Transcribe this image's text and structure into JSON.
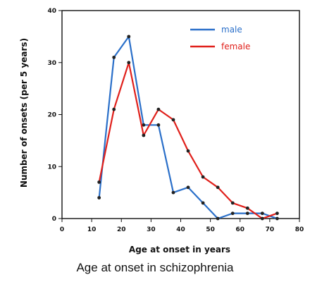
{
  "chart_data": {
    "type": "line",
    "title": "",
    "caption": "Age at onset in schizophrenia",
    "xlabel": "Age at onset in years",
    "ylabel": "Number of onsets (per 5 years)",
    "xlim": [
      0,
      80
    ],
    "ylim": [
      0,
      40
    ],
    "xticks": [
      0,
      10,
      20,
      30,
      40,
      50,
      60,
      70,
      80
    ],
    "yticks": [
      0,
      10,
      20,
      30,
      40
    ],
    "grid": false,
    "legend_position": "top-right",
    "series": [
      {
        "name": "male",
        "color": "#2a6fc9",
        "x": [
          12.5,
          17.5,
          22.5,
          27.5,
          32.5,
          37.5,
          42.5,
          47.5,
          52.5,
          57.5,
          62.5,
          67.5,
          72.5
        ],
        "y": [
          4,
          31,
          35,
          18,
          18,
          5,
          6,
          3,
          0,
          1,
          1,
          1,
          0
        ]
      },
      {
        "name": "female",
        "color": "#e0201b",
        "x": [
          12.5,
          17.5,
          22.5,
          27.5,
          32.5,
          37.5,
          42.5,
          47.5,
          52.5,
          57.5,
          62.5,
          67.5,
          72.5
        ],
        "y": [
          7,
          21,
          30,
          16,
          21,
          19,
          13,
          8,
          6,
          3,
          2,
          0,
          1
        ]
      }
    ]
  }
}
